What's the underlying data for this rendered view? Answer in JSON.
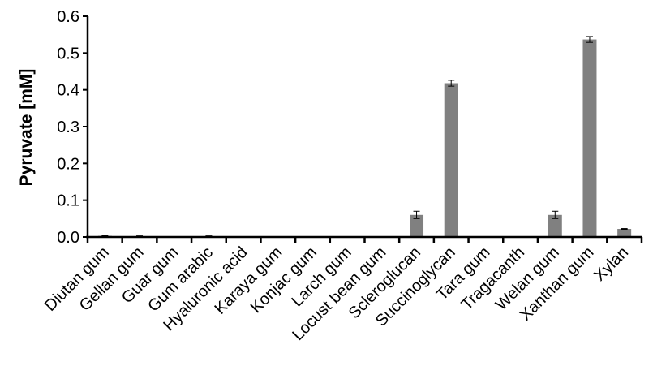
{
  "chart_data": {
    "type": "bar",
    "title": "",
    "xlabel": "",
    "ylabel": "Pyruvate [mM]",
    "ylim": [
      0,
      0.6
    ],
    "yticks": [
      "0.0",
      "0.1",
      "0.2",
      "0.3",
      "0.4",
      "0.5",
      "0.6"
    ],
    "grid": false,
    "bar_color": "#808080",
    "categories": [
      "Diutan gum",
      "Gellan gum",
      "Guar gum",
      "Gum arabic",
      "Hyaluronic acid",
      "Karaya gum",
      "Konjac gum",
      "Larch gum",
      "Locust bean gum",
      "Scleroglucan",
      "Succinoglycan",
      "Tara gum",
      "Tragacanth",
      "Welan gum",
      "Xanthan gum",
      "Xylan"
    ],
    "values": [
      0.003,
      0.002,
      0,
      0.002,
      0,
      0,
      0,
      0,
      0,
      0.06,
      0.418,
      0,
      0,
      0.06,
      0.537,
      0.022
    ],
    "errors": [
      0.001,
      0.001,
      0,
      0.001,
      0,
      0,
      0,
      0,
      0,
      0.01,
      0.008,
      0,
      0,
      0.01,
      0.008,
      0.001
    ]
  }
}
